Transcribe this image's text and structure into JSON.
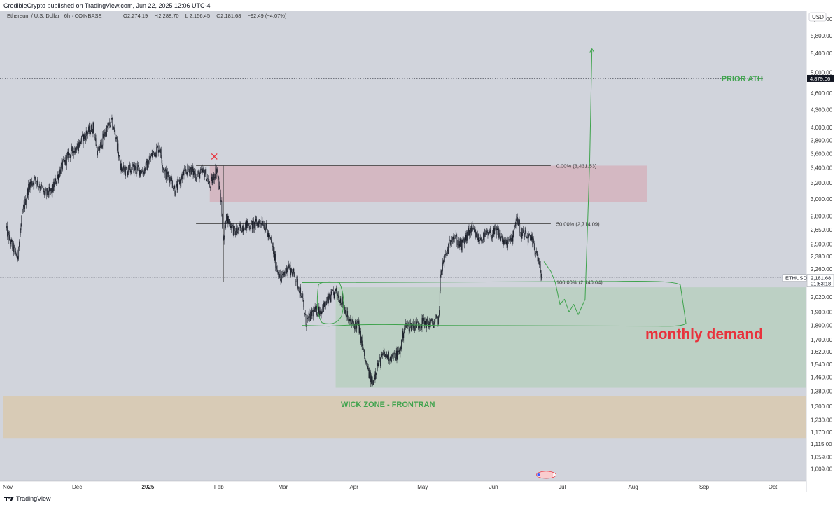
{
  "header": {
    "published_line": "CredibleCrypto published on TradingView.com, Jun 22, 2025 12:06 UTC-4"
  },
  "footer": {
    "brand": "TradingView"
  },
  "chart_data": {
    "type": "candlestick",
    "symbol_line": {
      "name": "Ethereum / U.S. Dollar · 6h · COINBASE",
      "open_label": "O",
      "open": "2,274.19",
      "high_label": "H",
      "high": "2,288.70",
      "low_label": "L",
      "low": "2,156.45",
      "close_label": "C",
      "close": "2,181.68",
      "change": "−92.49 (−4.07%)"
    },
    "currency": "USD",
    "y_axis": {
      "scale": "log",
      "range": [
        960,
        6400
      ],
      "ticks": [
        "6,200.00",
        "5,800.00",
        "5,400.00",
        "5,000.00",
        "4,600.00",
        "4,300.00",
        "4,000.00",
        "3,800.00",
        "3,600.00",
        "3,400.00",
        "3,200.00",
        "3,000.00",
        "2,800.00",
        "2,650.00",
        "2,500.00",
        "2,380.00",
        "2,260.00",
        "2,020.00",
        "1,900.00",
        "1,800.00",
        "1,700.00",
        "1,620.00",
        "1,540.00",
        "1,460.00",
        "1,380.00",
        "1,300.00",
        "1,230.00",
        "1,170.00",
        "1,115.00",
        "1,059.00",
        "1,009.00"
      ]
    },
    "x_axis": {
      "range": [
        "2024-11-01",
        "2025-10-12"
      ],
      "ticks": [
        {
          "label": "Nov",
          "date": "2024-11-01"
        },
        {
          "label": "Dec",
          "date": "2024-12-01"
        },
        {
          "label": "2025",
          "date": "2025-01-01"
        },
        {
          "label": "Feb",
          "date": "2025-02-01"
        },
        {
          "label": "Mar",
          "date": "2025-03-01"
        },
        {
          "label": "Apr",
          "date": "2025-04-01"
        },
        {
          "label": "May",
          "date": "2025-05-01"
        },
        {
          "label": "Jun",
          "date": "2025-06-01"
        },
        {
          "label": "Jul",
          "date": "2025-07-01"
        },
        {
          "label": "Aug",
          "date": "2025-08-01"
        },
        {
          "label": "Sep",
          "date": "2025-09-01"
        },
        {
          "label": "Oct",
          "date": "2025-10-01"
        }
      ]
    },
    "price_path": [
      {
        "date": "2024-10-31",
        "price": 2650
      },
      {
        "date": "2024-11-03",
        "price": 2460
      },
      {
        "date": "2024-11-05",
        "price": 2380
      },
      {
        "date": "2024-11-07",
        "price": 2800
      },
      {
        "date": "2024-11-10",
        "price": 3180
      },
      {
        "date": "2024-11-13",
        "price": 3250
      },
      {
        "date": "2024-11-17",
        "price": 3050
      },
      {
        "date": "2024-11-20",
        "price": 3100
      },
      {
        "date": "2024-11-24",
        "price": 3400
      },
      {
        "date": "2024-11-28",
        "price": 3600
      },
      {
        "date": "2024-12-01",
        "price": 3700
      },
      {
        "date": "2024-12-05",
        "price": 3900
      },
      {
        "date": "2024-12-08",
        "price": 4010
      },
      {
        "date": "2024-12-10",
        "price": 3600
      },
      {
        "date": "2024-12-13",
        "price": 3900
      },
      {
        "date": "2024-12-16",
        "price": 4100
      },
      {
        "date": "2024-12-18",
        "price": 3850
      },
      {
        "date": "2024-12-20",
        "price": 3400
      },
      {
        "date": "2024-12-22",
        "price": 3350
      },
      {
        "date": "2024-12-26",
        "price": 3400
      },
      {
        "date": "2024-12-30",
        "price": 3350
      },
      {
        "date": "2025-01-03",
        "price": 3600
      },
      {
        "date": "2025-01-06",
        "price": 3700
      },
      {
        "date": "2025-01-08",
        "price": 3350
      },
      {
        "date": "2025-01-11",
        "price": 3250
      },
      {
        "date": "2025-01-13",
        "price": 3100
      },
      {
        "date": "2025-01-16",
        "price": 3300
      },
      {
        "date": "2025-01-19",
        "price": 3400
      },
      {
        "date": "2025-01-22",
        "price": 3300
      },
      {
        "date": "2025-01-26",
        "price": 3350
      },
      {
        "date": "2025-01-28",
        "price": 3150
      },
      {
        "date": "2025-01-31",
        "price": 3400
      },
      {
        "date": "2025-02-02",
        "price": 2950
      },
      {
        "date": "2025-02-03",
        "price": 2500
      },
      {
        "date": "2025-02-04",
        "price": 2800
      },
      {
        "date": "2025-02-08",
        "price": 2620
      },
      {
        "date": "2025-02-12",
        "price": 2700
      },
      {
        "date": "2025-02-16",
        "price": 2700
      },
      {
        "date": "2025-02-20",
        "price": 2750
      },
      {
        "date": "2025-02-24",
        "price": 2500
      },
      {
        "date": "2025-02-26",
        "price": 2300
      },
      {
        "date": "2025-02-28",
        "price": 2150
      },
      {
        "date": "2025-03-03",
        "price": 2300
      },
      {
        "date": "2025-03-06",
        "price": 2200
      },
      {
        "date": "2025-03-09",
        "price": 2050
      },
      {
        "date": "2025-03-11",
        "price": 1820
      },
      {
        "date": "2025-03-14",
        "price": 1900
      },
      {
        "date": "2025-03-18",
        "price": 1920
      },
      {
        "date": "2025-03-21",
        "price": 2000
      },
      {
        "date": "2025-03-24",
        "price": 2060
      },
      {
        "date": "2025-03-27",
        "price": 1980
      },
      {
        "date": "2025-03-30",
        "price": 1820
      },
      {
        "date": "2025-04-03",
        "price": 1800
      },
      {
        "date": "2025-04-06",
        "price": 1550
      },
      {
        "date": "2025-04-09",
        "price": 1420
      },
      {
        "date": "2025-04-11",
        "price": 1530
      },
      {
        "date": "2025-04-14",
        "price": 1600
      },
      {
        "date": "2025-04-18",
        "price": 1580
      },
      {
        "date": "2025-04-21",
        "price": 1620
      },
      {
        "date": "2025-04-23",
        "price": 1790
      },
      {
        "date": "2025-04-27",
        "price": 1800
      },
      {
        "date": "2025-05-01",
        "price": 1820
      },
      {
        "date": "2025-05-05",
        "price": 1810
      },
      {
        "date": "2025-05-08",
        "price": 1850
      },
      {
        "date": "2025-05-09",
        "price": 2250
      },
      {
        "date": "2025-05-12",
        "price": 2450
      },
      {
        "date": "2025-05-14",
        "price": 2600
      },
      {
        "date": "2025-05-18",
        "price": 2480
      },
      {
        "date": "2025-05-22",
        "price": 2650
      },
      {
        "date": "2025-05-26",
        "price": 2550
      },
      {
        "date": "2025-05-30",
        "price": 2600
      },
      {
        "date": "2025-06-03",
        "price": 2620
      },
      {
        "date": "2025-06-06",
        "price": 2500
      },
      {
        "date": "2025-06-09",
        "price": 2550
      },
      {
        "date": "2025-06-11",
        "price": 2800
      },
      {
        "date": "2025-06-13",
        "price": 2620
      },
      {
        "date": "2025-06-16",
        "price": 2560
      },
      {
        "date": "2025-06-18",
        "price": 2520
      },
      {
        "date": "2025-06-20",
        "price": 2400
      },
      {
        "date": "2025-06-22",
        "price": 2181.68
      }
    ],
    "annotations": {
      "prior_ath": {
        "label": "PRIOR ATH",
        "price": 4879.06,
        "price_tag": "4,879.06"
      },
      "current_price": {
        "symbol": "ETHUSD",
        "price": 2181.68,
        "price_tag": "2,181.68",
        "countdown": "01:53:18"
      },
      "fib_levels": [
        {
          "label": "0.00% (3,431.53)",
          "price": 3431.53
        },
        {
          "label": "50.00% (2,714.09)",
          "price": 2714.09
        },
        {
          "label": "100.00% (2,146.64)",
          "price": 2146.64
        }
      ],
      "supply_zone": {
        "from": "2025-01-28",
        "to": "2025-08-07",
        "top": 3431.53,
        "bottom": 2960
      },
      "demand_zone": {
        "label": "monthly demand",
        "from": "2025-03-24",
        "to": "2025-10-12",
        "top": 2100,
        "bottom": 1400
      },
      "wick_zone": {
        "label": "WICK ZONE - FRONTRAN",
        "top": 1355,
        "bottom": 1140
      },
      "rejection_marker": {
        "date": "2025-01-30",
        "price": 3560
      },
      "projection_path": [
        {
          "date": "2025-06-23",
          "price": 2330
        },
        {
          "date": "2025-06-26",
          "price": 2240
        },
        {
          "date": "2025-06-28",
          "price": 2140
        },
        {
          "date": "2025-06-30",
          "price": 1960
        },
        {
          "date": "2025-07-02",
          "price": 2000
        },
        {
          "date": "2025-07-04",
          "price": 1900
        },
        {
          "date": "2025-07-06",
          "price": 1960
        },
        {
          "date": "2025-07-08",
          "price": 1880
        },
        {
          "date": "2025-07-10",
          "price": 1960
        },
        {
          "date": "2025-07-11",
          "price": 2000
        },
        {
          "date": "2025-07-13",
          "price": 3500
        },
        {
          "date": "2025-07-14",
          "price": 5500
        }
      ]
    },
    "colors": {
      "background": "#d1d4dc",
      "candles": "#131722",
      "green": "#3fa34d",
      "red": "#e8323c",
      "supply_zone": "#d4b8c2",
      "demand_zone": "#bcd0c4",
      "wick_zone": "#d8cbb6"
    }
  }
}
